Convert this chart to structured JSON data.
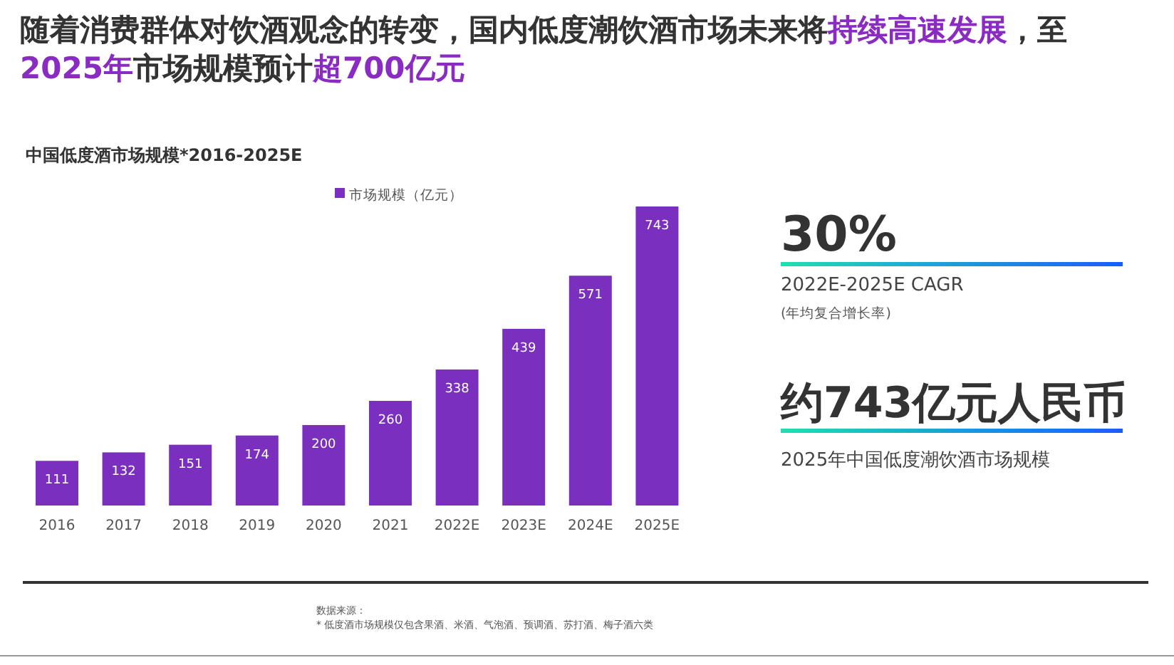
{
  "chart_data": {
    "type": "bar",
    "title": "随着消费群体对饮酒观念的转变，国内低度潮饮酒市场未来将**持续高速发展**，至\n**2025年**市场规模预计**超700亿元**",
    "subtitle": "中国低度酒市场规模*2016-2025E",
    "categories": [
      "2016",
      "2017",
      "2018",
      "2019",
      "2020",
      "2021",
      "2022E",
      "2023E",
      "2024E",
      "2025E"
    ],
    "series": [
      {
        "name": "市场规模（亿元）",
        "color": "#7b2fbe",
        "values": [
          111,
          132,
          151,
          174,
          200,
          260,
          338,
          439,
          571,
          743
        ]
      }
    ],
    "data_labels": true,
    "legend": "top",
    "annotations": [
      "30%",
      "2022E-2025E CAGR",
      "(年均复合增长率)",
      "约743亿元人民币",
      "2025年中国低度潮饮酒市场规模",
      "数据来源：",
      "* 低度酒市场规模仅包含果酒、米酒、气泡酒、预调酒、苏打酒、梅子酒六类"
    ]
  }
}
